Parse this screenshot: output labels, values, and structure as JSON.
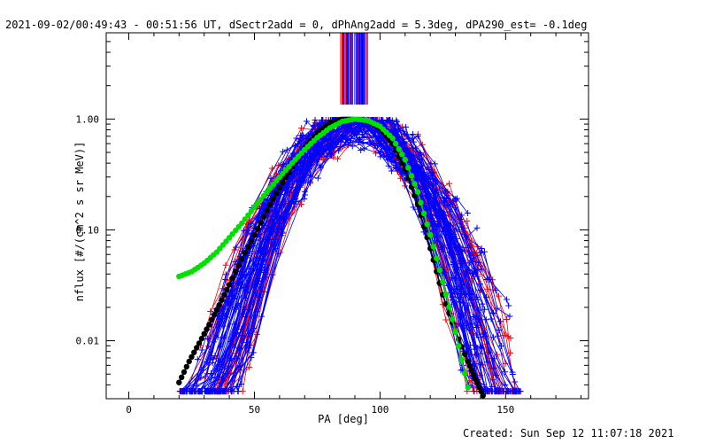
{
  "chart_data": {
    "type": "scatter",
    "title": "2021-09-02/00:49:43 - 00:51:56 UT, dSectr2add = 0, dPhAng2add = 5.3deg, dPA290_est= -0.1deg",
    "xlabel": "PA [deg]",
    "ylabel": "nflux [#/(cm^2 s sr MeV)]",
    "xlim": [
      -9,
      183
    ],
    "ylim": [
      0.003,
      6.0
    ],
    "y_scale": "log",
    "x_ticks": [
      0,
      50,
      100,
      150
    ],
    "x_tick_labels": [
      "0",
      "50",
      "100",
      "150"
    ],
    "y_ticks": [
      0.01,
      0.1,
      1.0
    ],
    "y_tick_labels": [
      "0.01",
      "0.10",
      "1.00"
    ],
    "grid": false,
    "footer": "Created: Sun Sep 12 11:07:18 2021",
    "colors": {
      "red": "#ff0000",
      "blue": "#0000ff",
      "black": "#000000",
      "green": "#00e000"
    },
    "series": [
      {
        "color": "black",
        "marker": "circle",
        "x": [
          20,
          24,
          28,
          32,
          36,
          40,
          45,
          50,
          55,
          60,
          65,
          70,
          75,
          80,
          85,
          90,
          95,
          100,
          105,
          110,
          115,
          120,
          125,
          130,
          135,
          138,
          141
        ],
        "y": [
          0.0042,
          0.0065,
          0.0095,
          0.014,
          0.021,
          0.032,
          0.055,
          0.09,
          0.15,
          0.24,
          0.37,
          0.55,
          0.75,
          0.92,
          1.0,
          1.0,
          0.97,
          0.83,
          0.6,
          0.35,
          0.17,
          0.068,
          0.026,
          0.012,
          0.0065,
          0.0045,
          0.0032
        ]
      },
      {
        "color": "green",
        "marker": "circle",
        "x": [
          20,
          25,
          30,
          35,
          40,
          45,
          50,
          55,
          60,
          65,
          70,
          75,
          80,
          85,
          90,
          95,
          100,
          105,
          110,
          115,
          120,
          125,
          130,
          135
        ],
        "y": [
          0.038,
          0.042,
          0.05,
          0.063,
          0.085,
          0.115,
          0.16,
          0.22,
          0.3,
          0.4,
          0.53,
          0.68,
          0.83,
          0.95,
          1.0,
          0.97,
          0.86,
          0.67,
          0.43,
          0.22,
          0.09,
          0.034,
          0.012,
          0.0038
        ]
      }
    ]
  }
}
